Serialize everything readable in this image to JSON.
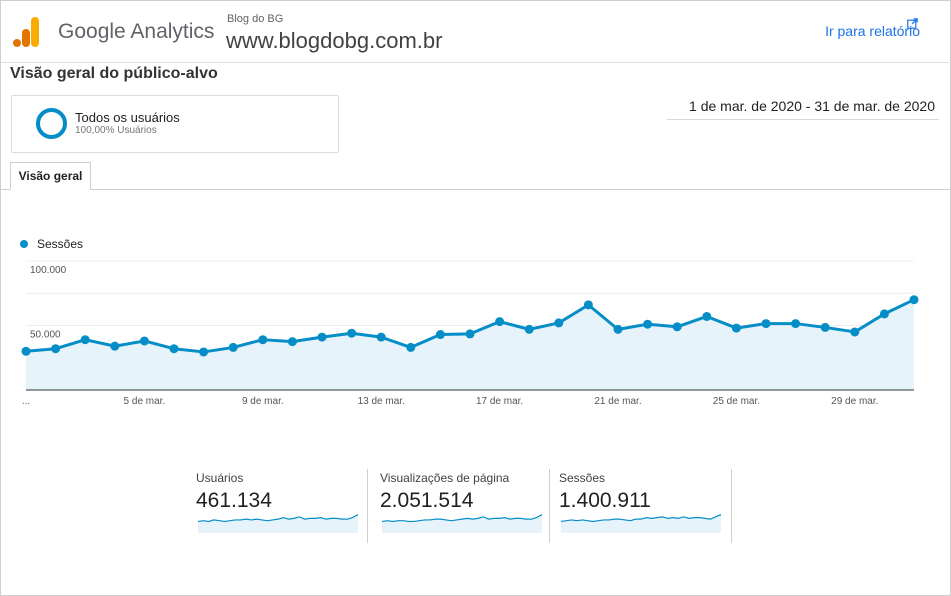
{
  "header": {
    "app_name": "Google Analytics",
    "account_name": "Blog do BG",
    "property_name": "www.blogdobg.com.br",
    "report_link": "Ir para relatório",
    "report_link_icon": "external-link-icon",
    "brand_colors": [
      "#f9ab00",
      "#e37400"
    ],
    "accent_color": "#1a73e8"
  },
  "page": {
    "title": "Visão geral do público-alvo",
    "date_range": "1 de mar. de 2020 - 31 de mar. de 2020"
  },
  "segment": {
    "name": "Todos os usuários",
    "share": "100,00% Usuários",
    "color": "#058dc7"
  },
  "tabs": [
    {
      "label": "Visão geral",
      "active": true
    }
  ],
  "chart_data": {
    "type": "area",
    "series": [
      {
        "name": "Sessões",
        "color": "#058dc7",
        "values": [
          30000,
          32000,
          39000,
          34000,
          38000,
          32000,
          29500,
          33000,
          39000,
          37500,
          41000,
          44000,
          41000,
          33000,
          43000,
          43500,
          53000,
          47000,
          52000,
          66000,
          47000,
          51000,
          49000,
          57000,
          48000,
          51500,
          51500,
          48500,
          45000,
          59000,
          70000
        ]
      }
    ],
    "x": [
      "1 de mar.",
      "2 de mar.",
      "3 de mar.",
      "4 de mar.",
      "5 de mar.",
      "6 de mar.",
      "7 de mar.",
      "8 de mar.",
      "9 de mar.",
      "10 de mar.",
      "11 de mar.",
      "12 de mar.",
      "13 de mar.",
      "14 de mar.",
      "15 de mar.",
      "16 de mar.",
      "17 de mar.",
      "18 de mar.",
      "19 de mar.",
      "20 de mar.",
      "21 de mar.",
      "22 de mar.",
      "23 de mar.",
      "24 de mar.",
      "25 de mar.",
      "26 de mar.",
      "27 de mar.",
      "28 de mar.",
      "29 de mar.",
      "30 de mar.",
      "31 de mar."
    ],
    "x_tick_labels": [
      "...",
      "5 de mar.",
      "9 de mar.",
      "13 de mar.",
      "17 de mar.",
      "21 de mar.",
      "25 de mar.",
      "29 de mar."
    ],
    "x_tick_indices": [
      0,
      4,
      8,
      12,
      16,
      20,
      24,
      28
    ],
    "y_tick_labels": [
      "100.000",
      "50.000"
    ],
    "y_tick_values": [
      100000,
      50000
    ],
    "ylim": [
      0,
      100000
    ],
    "grid": true,
    "legend": "top-left",
    "fill_color": "#e6f3fa"
  },
  "metrics": [
    {
      "label": "Usuários",
      "value": "461.134",
      "trend": [
        15,
        16,
        15,
        17,
        16,
        15,
        16,
        17,
        17,
        18,
        17,
        18,
        17,
        16,
        17,
        18,
        20,
        18,
        19,
        21,
        18,
        19,
        19,
        20,
        18,
        19,
        19,
        18,
        18,
        20,
        24
      ]
    },
    {
      "label": "Visualizações de página",
      "value": "2.051.514",
      "trend": [
        15,
        16,
        15,
        16,
        16,
        15,
        15,
        16,
        17,
        17,
        18,
        18,
        17,
        16,
        17,
        18,
        19,
        18,
        19,
        21,
        18,
        19,
        19,
        20,
        18,
        19,
        19,
        18,
        18,
        20,
        24
      ]
    },
    {
      "label": "Sessões",
      "value": "1.400.911",
      "trend": [
        15,
        16,
        17,
        16,
        17,
        16,
        15,
        16,
        17,
        17,
        18,
        18,
        17,
        16,
        18,
        18,
        20,
        19,
        20,
        21,
        19,
        20,
        19,
        21,
        19,
        20,
        20,
        19,
        18,
        21,
        24
      ]
    }
  ]
}
